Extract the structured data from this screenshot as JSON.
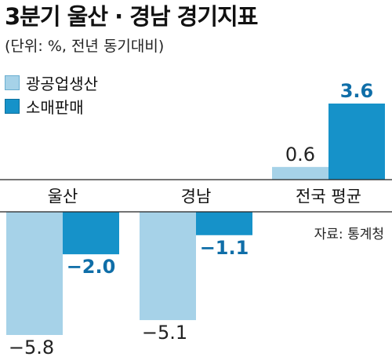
{
  "title": "3분기 울산 · 경남 경기지표",
  "subtitle": "(단위: %, 전년 동기대비)",
  "source": "자료: 통계청",
  "chart_data": {
    "type": "bar",
    "categories": [
      "울산",
      "경남",
      "전국 평균"
    ],
    "series": [
      {
        "name": "광공업생산",
        "values": [
          -5.8,
          -5.1,
          0.6
        ],
        "color": "#a6d2e8"
      },
      {
        "name": "소매판매",
        "values": [
          -2.0,
          -1.1,
          3.6
        ],
        "color": "#1692c9"
      }
    ],
    "value_labels": [
      [
        "−5.8",
        "−5.1",
        "0.6"
      ],
      [
        "−2.0",
        "−1.1",
        "3.6"
      ]
    ],
    "legend_position": "top-left",
    "grid": false
  }
}
